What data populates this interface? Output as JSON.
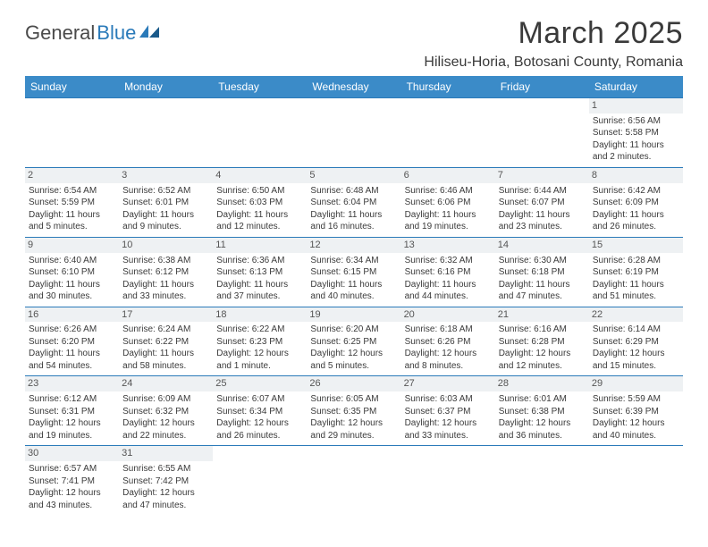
{
  "logo": {
    "text1": "General",
    "text2": "Blue",
    "icon_color": "#2a7ab9",
    "text_color": "#4a4a4a"
  },
  "title": "March 2025",
  "location": "Hiliseu-Horia, Botosani County, Romania",
  "colors": {
    "header_bg": "#3b8bc8",
    "header_fg": "#ffffff",
    "border": "#2a7ab9",
    "daynum_bg": "#eef1f3",
    "text": "#3a3a3a"
  },
  "day_headers": [
    "Sunday",
    "Monday",
    "Tuesday",
    "Wednesday",
    "Thursday",
    "Friday",
    "Saturday"
  ],
  "weeks": [
    [
      {
        "n": "",
        "sr": "",
        "ss": "",
        "dl": ""
      },
      {
        "n": "",
        "sr": "",
        "ss": "",
        "dl": ""
      },
      {
        "n": "",
        "sr": "",
        "ss": "",
        "dl": ""
      },
      {
        "n": "",
        "sr": "",
        "ss": "",
        "dl": ""
      },
      {
        "n": "",
        "sr": "",
        "ss": "",
        "dl": ""
      },
      {
        "n": "",
        "sr": "",
        "ss": "",
        "dl": ""
      },
      {
        "n": "1",
        "sr": "Sunrise: 6:56 AM",
        "ss": "Sunset: 5:58 PM",
        "dl": "Daylight: 11 hours and 2 minutes."
      }
    ],
    [
      {
        "n": "2",
        "sr": "Sunrise: 6:54 AM",
        "ss": "Sunset: 5:59 PM",
        "dl": "Daylight: 11 hours and 5 minutes."
      },
      {
        "n": "3",
        "sr": "Sunrise: 6:52 AM",
        "ss": "Sunset: 6:01 PM",
        "dl": "Daylight: 11 hours and 9 minutes."
      },
      {
        "n": "4",
        "sr": "Sunrise: 6:50 AM",
        "ss": "Sunset: 6:03 PM",
        "dl": "Daylight: 11 hours and 12 minutes."
      },
      {
        "n": "5",
        "sr": "Sunrise: 6:48 AM",
        "ss": "Sunset: 6:04 PM",
        "dl": "Daylight: 11 hours and 16 minutes."
      },
      {
        "n": "6",
        "sr": "Sunrise: 6:46 AM",
        "ss": "Sunset: 6:06 PM",
        "dl": "Daylight: 11 hours and 19 minutes."
      },
      {
        "n": "7",
        "sr": "Sunrise: 6:44 AM",
        "ss": "Sunset: 6:07 PM",
        "dl": "Daylight: 11 hours and 23 minutes."
      },
      {
        "n": "8",
        "sr": "Sunrise: 6:42 AM",
        "ss": "Sunset: 6:09 PM",
        "dl": "Daylight: 11 hours and 26 minutes."
      }
    ],
    [
      {
        "n": "9",
        "sr": "Sunrise: 6:40 AM",
        "ss": "Sunset: 6:10 PM",
        "dl": "Daylight: 11 hours and 30 minutes."
      },
      {
        "n": "10",
        "sr": "Sunrise: 6:38 AM",
        "ss": "Sunset: 6:12 PM",
        "dl": "Daylight: 11 hours and 33 minutes."
      },
      {
        "n": "11",
        "sr": "Sunrise: 6:36 AM",
        "ss": "Sunset: 6:13 PM",
        "dl": "Daylight: 11 hours and 37 minutes."
      },
      {
        "n": "12",
        "sr": "Sunrise: 6:34 AM",
        "ss": "Sunset: 6:15 PM",
        "dl": "Daylight: 11 hours and 40 minutes."
      },
      {
        "n": "13",
        "sr": "Sunrise: 6:32 AM",
        "ss": "Sunset: 6:16 PM",
        "dl": "Daylight: 11 hours and 44 minutes."
      },
      {
        "n": "14",
        "sr": "Sunrise: 6:30 AM",
        "ss": "Sunset: 6:18 PM",
        "dl": "Daylight: 11 hours and 47 minutes."
      },
      {
        "n": "15",
        "sr": "Sunrise: 6:28 AM",
        "ss": "Sunset: 6:19 PM",
        "dl": "Daylight: 11 hours and 51 minutes."
      }
    ],
    [
      {
        "n": "16",
        "sr": "Sunrise: 6:26 AM",
        "ss": "Sunset: 6:20 PM",
        "dl": "Daylight: 11 hours and 54 minutes."
      },
      {
        "n": "17",
        "sr": "Sunrise: 6:24 AM",
        "ss": "Sunset: 6:22 PM",
        "dl": "Daylight: 11 hours and 58 minutes."
      },
      {
        "n": "18",
        "sr": "Sunrise: 6:22 AM",
        "ss": "Sunset: 6:23 PM",
        "dl": "Daylight: 12 hours and 1 minute."
      },
      {
        "n": "19",
        "sr": "Sunrise: 6:20 AM",
        "ss": "Sunset: 6:25 PM",
        "dl": "Daylight: 12 hours and 5 minutes."
      },
      {
        "n": "20",
        "sr": "Sunrise: 6:18 AM",
        "ss": "Sunset: 6:26 PM",
        "dl": "Daylight: 12 hours and 8 minutes."
      },
      {
        "n": "21",
        "sr": "Sunrise: 6:16 AM",
        "ss": "Sunset: 6:28 PM",
        "dl": "Daylight: 12 hours and 12 minutes."
      },
      {
        "n": "22",
        "sr": "Sunrise: 6:14 AM",
        "ss": "Sunset: 6:29 PM",
        "dl": "Daylight: 12 hours and 15 minutes."
      }
    ],
    [
      {
        "n": "23",
        "sr": "Sunrise: 6:12 AM",
        "ss": "Sunset: 6:31 PM",
        "dl": "Daylight: 12 hours and 19 minutes."
      },
      {
        "n": "24",
        "sr": "Sunrise: 6:09 AM",
        "ss": "Sunset: 6:32 PM",
        "dl": "Daylight: 12 hours and 22 minutes."
      },
      {
        "n": "25",
        "sr": "Sunrise: 6:07 AM",
        "ss": "Sunset: 6:34 PM",
        "dl": "Daylight: 12 hours and 26 minutes."
      },
      {
        "n": "26",
        "sr": "Sunrise: 6:05 AM",
        "ss": "Sunset: 6:35 PM",
        "dl": "Daylight: 12 hours and 29 minutes."
      },
      {
        "n": "27",
        "sr": "Sunrise: 6:03 AM",
        "ss": "Sunset: 6:37 PM",
        "dl": "Daylight: 12 hours and 33 minutes."
      },
      {
        "n": "28",
        "sr": "Sunrise: 6:01 AM",
        "ss": "Sunset: 6:38 PM",
        "dl": "Daylight: 12 hours and 36 minutes."
      },
      {
        "n": "29",
        "sr": "Sunrise: 5:59 AM",
        "ss": "Sunset: 6:39 PM",
        "dl": "Daylight: 12 hours and 40 minutes."
      }
    ],
    [
      {
        "n": "30",
        "sr": "Sunrise: 6:57 AM",
        "ss": "Sunset: 7:41 PM",
        "dl": "Daylight: 12 hours and 43 minutes."
      },
      {
        "n": "31",
        "sr": "Sunrise: 6:55 AM",
        "ss": "Sunset: 7:42 PM",
        "dl": "Daylight: 12 hours and 47 minutes."
      },
      {
        "n": "",
        "sr": "",
        "ss": "",
        "dl": ""
      },
      {
        "n": "",
        "sr": "",
        "ss": "",
        "dl": ""
      },
      {
        "n": "",
        "sr": "",
        "ss": "",
        "dl": ""
      },
      {
        "n": "",
        "sr": "",
        "ss": "",
        "dl": ""
      },
      {
        "n": "",
        "sr": "",
        "ss": "",
        "dl": ""
      }
    ]
  ]
}
